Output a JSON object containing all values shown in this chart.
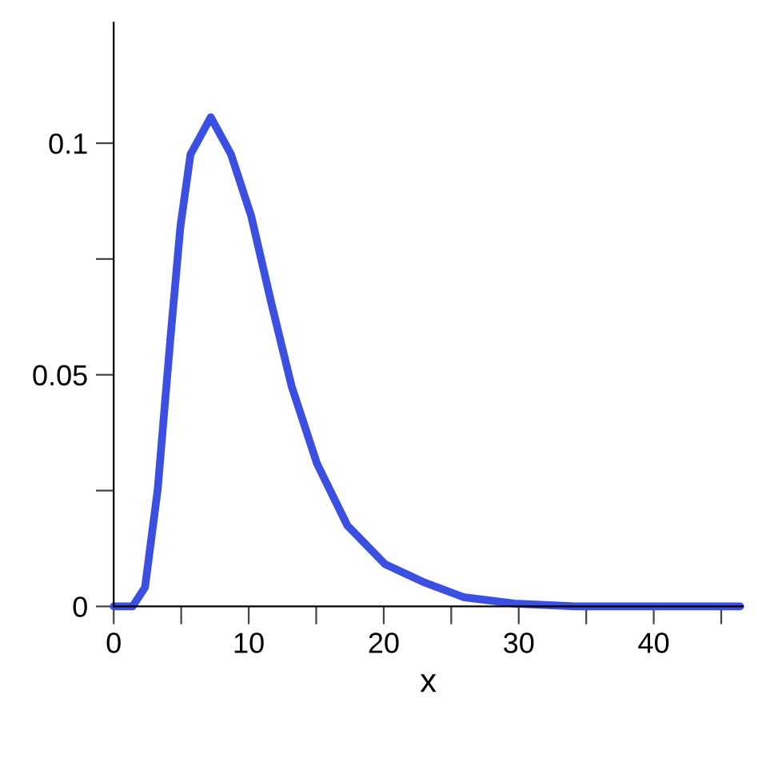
{
  "chart_data": {
    "type": "line",
    "xlabel": "x",
    "series": [
      {
        "color": "#3b4fe0",
        "x": [
          0,
          1.4,
          2.32,
          3.26,
          4.19,
          4.94,
          5.69,
          7.19,
          8.69,
          10.19,
          11.69,
          13.18,
          15.06,
          17.3,
          20.1,
          22.9,
          25.9,
          29.7,
          34.2,
          46.4
        ],
        "values": [
          0,
          0,
          0.0041,
          0.0253,
          0.0575,
          0.082,
          0.0976,
          0.1056,
          0.0976,
          0.0842,
          0.0653,
          0.0475,
          0.0308,
          0.0175,
          0.0091,
          0.0053,
          0.002,
          0.0006,
          0,
          0
        ]
      }
    ],
    "xlim": [
      0,
      46.6
    ],
    "ylim": [
      0,
      0.126
    ],
    "xticks": [
      0,
      {
        "value": 5,
        "label": null
      },
      10,
      {
        "value": 15,
        "label": null
      },
      20,
      {
        "value": 25,
        "label": null
      },
      30,
      {
        "value": 35,
        "label": null
      },
      40,
      {
        "value": 45,
        "label": null
      }
    ],
    "yticks": [
      0,
      {
        "value": 0.025,
        "label": null
      },
      0.05,
      {
        "value": 0.075,
        "label": null
      },
      0.1
    ],
    "grid": false,
    "marker": "none",
    "line_style": "solid"
  }
}
